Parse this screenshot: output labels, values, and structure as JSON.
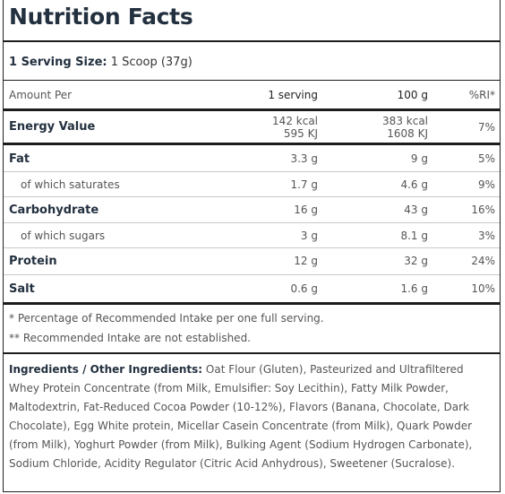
{
  "title": "Nutrition Facts",
  "serving": {
    "label": "1 Serving Size:",
    "value": "1 Scoop (37g)"
  },
  "header": {
    "amount_per": "Amount Per",
    "col1": "1 serving",
    "col2": "100 g",
    "col3": "%RI*"
  },
  "energy": {
    "label": "Energy Value",
    "c1_kcal": "142 kcal",
    "c1_kj": "595 KJ",
    "c2_kcal": "383 kcal",
    "c2_kj": "1608 KJ",
    "c3": "7%"
  },
  "rows": [
    {
      "label": "Fat",
      "c1": "3.3 g",
      "c2": "9 g",
      "c3": "5%"
    },
    {
      "label": "of which saturates",
      "c1": "1.7 g",
      "c2": "4.6 g",
      "c3": "9%"
    },
    {
      "label": "Carbohydrate",
      "c1": "16 g",
      "c2": "43 g",
      "c3": "16%"
    },
    {
      "label": "of which sugars",
      "c1": "3 g",
      "c2": "8.1 g",
      "c3": "3%"
    },
    {
      "label": "Protein",
      "c1": "12 g",
      "c2": "32 g",
      "c3": "24%"
    },
    {
      "label": "Salt",
      "c1": "0.6 g",
      "c2": "1.6 g",
      "c3": "10%"
    }
  ],
  "notes": [
    "* Percentage of Recommended Intake per one full serving.",
    "** Recommended Intake are not established."
  ],
  "ingredients": {
    "label": "Ingredients / Other Ingredients:",
    "text": "Oat Flour (Gluten), Pasteurized and Ultrafiltered Whey Protein Concentrate (from Milk, Emulsifier: Soy Lecithin), Fatty Milk Powder, Maltodextrin, Fat-Reduced Cocoa Powder (10-12%), Flavors (Banana, Chocolate, Dark Chocolate), Egg White protein, Micellar Casein Concentrate (from Milk), Quark Powder (from Milk), Yoghurt Powder (from Milk), Bulking Agent (Sodium Hydrogen Carbonate), Sodium Chloride, Acidity Regulator (Citric Acid Anhydrous), Sweetener (Sucralose)."
  }
}
